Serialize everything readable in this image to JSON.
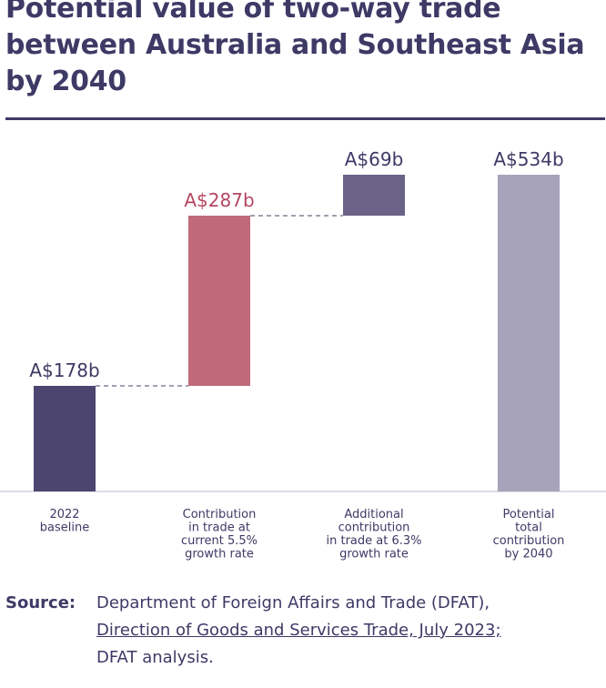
{
  "title_lines": [
    "Potential value of two-way trade",
    "between Australia and Southeast Asia",
    "by 2040"
  ],
  "source": {
    "label": "Source:",
    "line1": "Department of Foreign Affairs and Trade (DFAT),",
    "link": "Direction of Goods and Services Trade, July 2023;",
    "line3": "DFAT analysis."
  },
  "colors": {
    "baseline": "#4b4570",
    "current": "#c0697a",
    "additional": "#6b6287",
    "total": "#a7a3ba",
    "text": "#3d3a66",
    "highlight_label": "#b5465f"
  },
  "chart_data": {
    "type": "bar",
    "subtype": "waterfall",
    "unit": "A$ billion",
    "ylim": [
      0,
      534
    ],
    "grid": false,
    "bars": [
      {
        "category": [
          "2022",
          "baseline"
        ],
        "start": 0,
        "end": 178,
        "label": "A$178b",
        "color": "#4b4570",
        "label_color": "#3d3a66"
      },
      {
        "category": [
          "Contribution",
          "in trade at",
          "current 5.5%",
          "growth rate"
        ],
        "start": 178,
        "end": 465,
        "label": "A$287b",
        "color": "#c0697a",
        "label_color": "#b5465f"
      },
      {
        "category": [
          "Additional",
          "contribution",
          "in trade at 6.3%",
          "growth rate"
        ],
        "start": 465,
        "end": 534,
        "label": "A$69b",
        "color": "#6b6287",
        "label_color": "#3d3a66"
      },
      {
        "category": [
          "Potential",
          "total",
          "contribution",
          "by 2040"
        ],
        "start": 0,
        "end": 534,
        "label": "A$534b",
        "color": "#a7a3ba",
        "label_color": "#3d3a66"
      }
    ]
  }
}
